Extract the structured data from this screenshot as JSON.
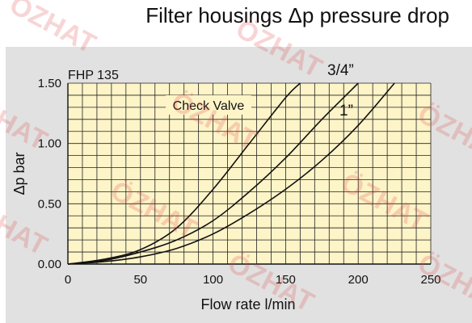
{
  "header": {
    "title": "Filter housings Δp pressure drop"
  },
  "watermark": {
    "text": "ÖZHAT"
  },
  "chart_data": {
    "type": "line",
    "model_label": "FHP 135",
    "annotation": "Check Valve",
    "xlabel": "Flow rate l/min",
    "ylabel": "Δp bar",
    "xlim": [
      0,
      250
    ],
    "ylim": [
      0,
      1.5
    ],
    "x_ticks": [
      0,
      50,
      100,
      150,
      200,
      250
    ],
    "x_tick_labels": [
      "0",
      "50",
      "100",
      "150",
      "200",
      "250"
    ],
    "y_ticks": [
      0,
      0.5,
      1.0,
      1.5
    ],
    "y_tick_labels": [
      "0.00",
      "0.50",
      "1.00",
      "1.50"
    ],
    "grid": true,
    "grid_minor_x_step": 10,
    "grid_minor_y_step": 0.1,
    "plot_background": "#fdf4c8",
    "grid_color": "#222222",
    "series": [
      {
        "name": "",
        "color": "#111111",
        "x": [
          0,
          25,
          50,
          75,
          100,
          125,
          150,
          160
        ],
        "y": [
          0,
          0.04,
          0.12,
          0.3,
          0.62,
          1.0,
          1.38,
          1.5
        ]
      },
      {
        "name": "3/4”",
        "color": "#111111",
        "x": [
          0,
          25,
          50,
          75,
          100,
          125,
          150,
          175,
          200
        ],
        "y": [
          0,
          0.03,
          0.1,
          0.2,
          0.36,
          0.6,
          0.88,
          1.2,
          1.5
        ]
      },
      {
        "name": "1”",
        "color": "#111111",
        "x": [
          0,
          25,
          50,
          75,
          100,
          125,
          150,
          175,
          200,
          225
        ],
        "y": [
          0,
          0.02,
          0.06,
          0.13,
          0.25,
          0.42,
          0.62,
          0.86,
          1.15,
          1.5
        ]
      }
    ]
  }
}
